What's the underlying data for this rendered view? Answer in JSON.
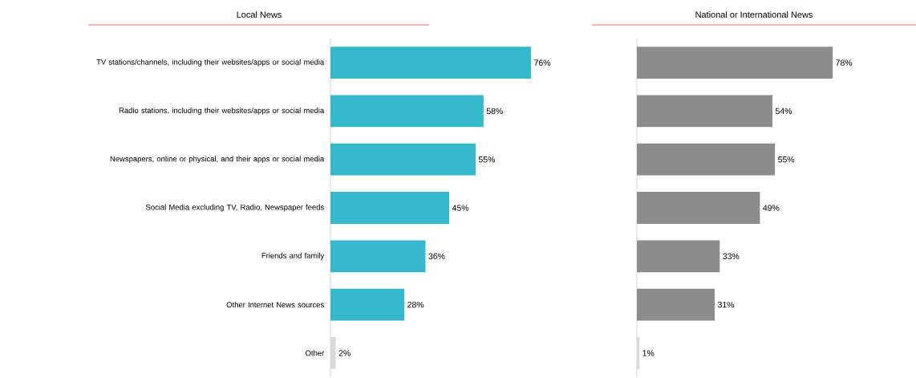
{
  "chart_data": [
    {
      "type": "bar",
      "orientation": "horizontal",
      "title": "Local News",
      "categories": [
        "TV stations/channels, including their websites/apps or social media",
        "Radio stations, including their websites/apps or social media",
        "Newspapers, online or physical, and their apps or social media",
        "Social Media excluding TV, Radio, Newspaper feeds",
        "Friends and family",
        "Other Internet News sources",
        "Other"
      ],
      "values": [
        76,
        58,
        55,
        45,
        36,
        28,
        2
      ],
      "value_labels": [
        "76%",
        "58%",
        "55%",
        "45%",
        "36%",
        "28%",
        "2%"
      ],
      "colors": [
        "#36b8cc",
        "#36b8cc",
        "#36b8cc",
        "#36b8cc",
        "#36b8cc",
        "#36b8cc",
        "#d9d9d9"
      ],
      "tick_labels": "y"
    },
    {
      "type": "bar",
      "orientation": "horizontal",
      "title": "National or International News",
      "categories": [
        null,
        null,
        null,
        null,
        null,
        null,
        null
      ],
      "values": [
        78,
        54,
        55,
        49,
        33,
        31,
        1
      ],
      "value_labels": [
        "78%",
        "54%",
        "55%",
        "49%",
        "33%",
        "31%",
        "1%"
      ],
      "colors": [
        "#8c8c8c",
        "#8c8c8c",
        "#8c8c8c",
        "#8c8c8c",
        "#8c8c8c",
        "#8c8c8c",
        "#d9d9d9"
      ],
      "tick_labels": false
    }
  ]
}
